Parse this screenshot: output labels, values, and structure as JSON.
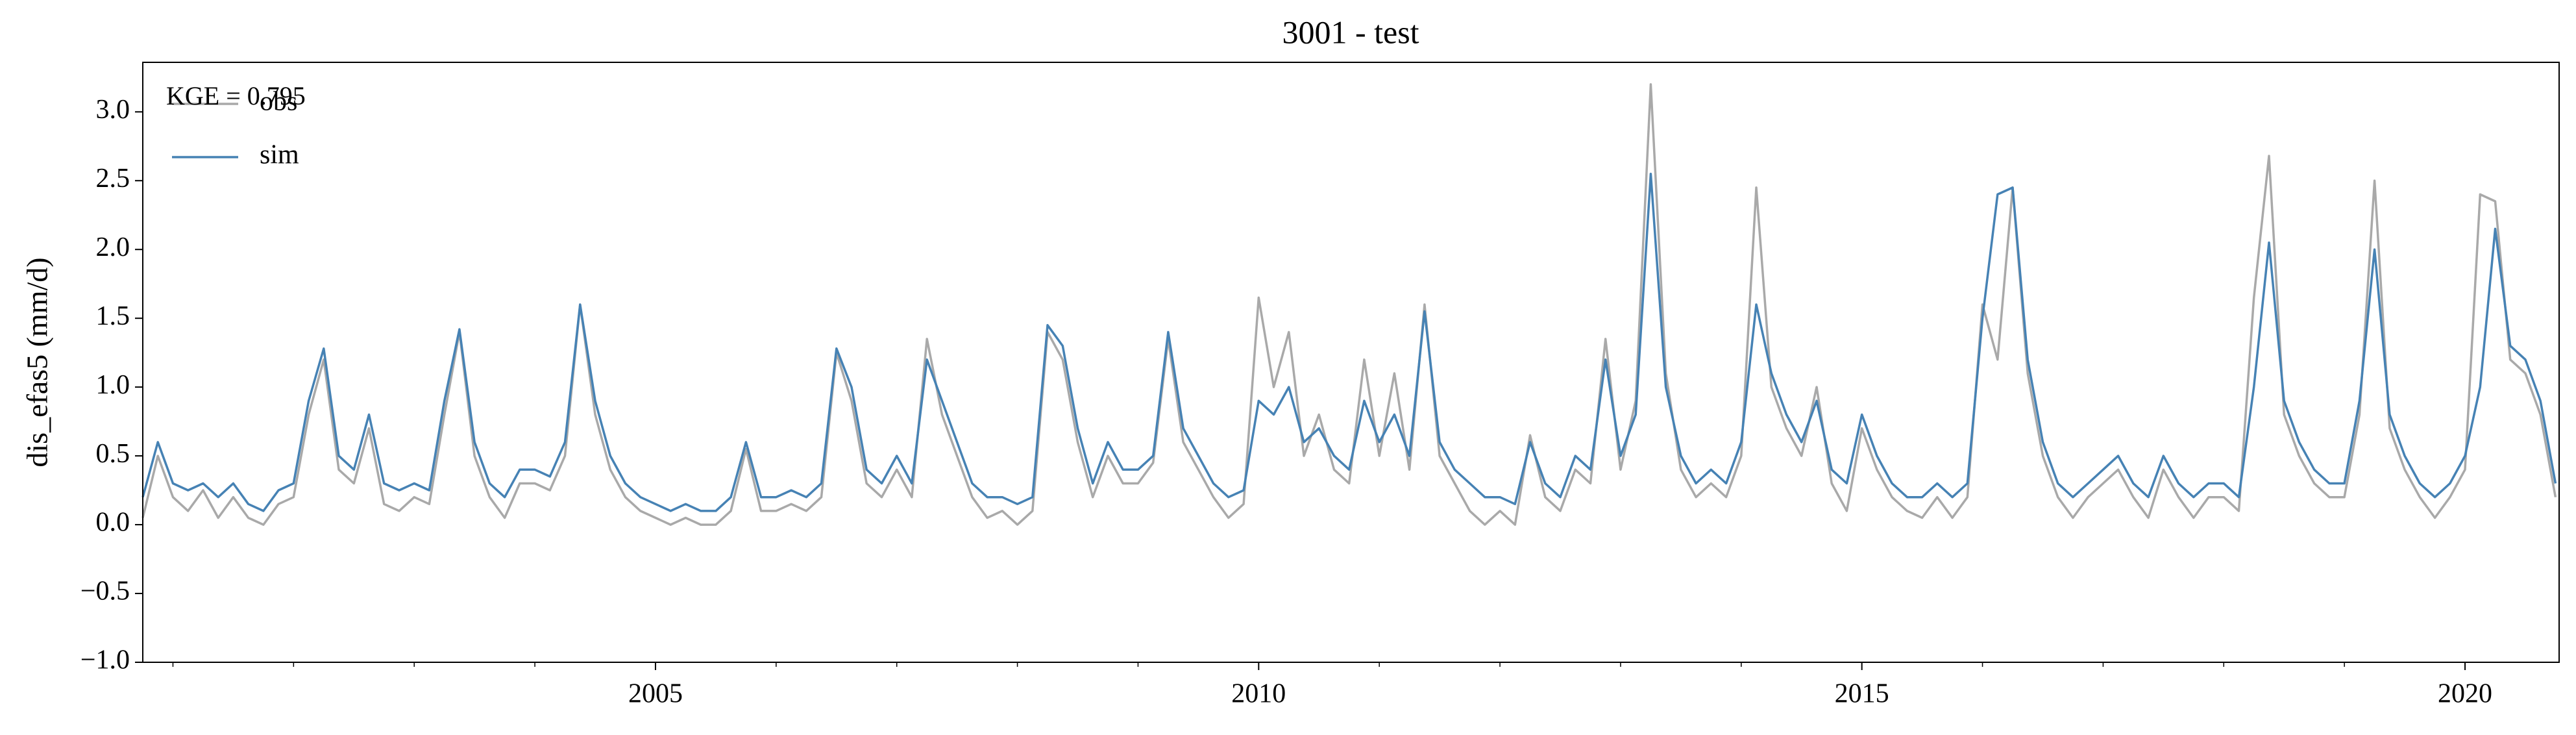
{
  "chart_data": {
    "type": "line",
    "title": "3001 - test",
    "ylabel": "dis_efas5 (mm/d)",
    "annotation": "KGE = 0.795",
    "legend": "upper left",
    "grid": false,
    "xlim": [
      2000.75,
      2020.78
    ],
    "xticks": [
      2005,
      2010,
      2015,
      2020
    ],
    "xminorticks": [
      2001,
      2002,
      2003,
      2004,
      2006,
      2007,
      2008,
      2009,
      2011,
      2012,
      2013,
      2014,
      2016,
      2017,
      2018,
      2019
    ],
    "ylim": [
      -1.0,
      3.36
    ],
    "yticks": [
      {
        "value": -1.0,
        "label": "−1.0"
      },
      {
        "value": -0.5,
        "label": "−0.5"
      },
      {
        "value": 0.0,
        "label": "0.0"
      },
      {
        "value": 0.5,
        "label": "0.5"
      },
      {
        "value": 1.0,
        "label": "1.0"
      },
      {
        "value": 1.5,
        "label": "1.5"
      },
      {
        "value": 2.0,
        "label": "2.0"
      },
      {
        "value": 2.5,
        "label": "2.5"
      },
      {
        "value": 3.0,
        "label": "3.0"
      }
    ],
    "x": [
      2000.75,
      2000.875,
      2001,
      2001.125,
      2001.25,
      2001.375,
      2001.5,
      2001.625,
      2001.75,
      2001.875,
      2002,
      2002.125,
      2002.25,
      2002.375,
      2002.5,
      2002.625,
      2002.75,
      2002.875,
      2003,
      2003.125,
      2003.25,
      2003.375,
      2003.5,
      2003.625,
      2003.75,
      2003.875,
      2004,
      2004.125,
      2004.25,
      2004.375,
      2004.5,
      2004.625,
      2004.75,
      2004.875,
      2005,
      2005.125,
      2005.25,
      2005.375,
      2005.5,
      2005.625,
      2005.75,
      2005.875,
      2006,
      2006.125,
      2006.25,
      2006.375,
      2006.5,
      2006.625,
      2006.75,
      2006.875,
      2007,
      2007.125,
      2007.25,
      2007.375,
      2007.5,
      2007.625,
      2007.75,
      2007.875,
      2008,
      2008.125,
      2008.25,
      2008.375,
      2008.5,
      2008.625,
      2008.75,
      2008.875,
      2009,
      2009.125,
      2009.25,
      2009.375,
      2009.5,
      2009.625,
      2009.75,
      2009.875,
      2010,
      2010.125,
      2010.25,
      2010.375,
      2010.5,
      2010.625,
      2010.75,
      2010.875,
      2011,
      2011.125,
      2011.25,
      2011.375,
      2011.5,
      2011.625,
      2011.75,
      2011.875,
      2012,
      2012.125,
      2012.25,
      2012.375,
      2012.5,
      2012.625,
      2012.75,
      2012.875,
      2013,
      2013.125,
      2013.25,
      2013.375,
      2013.5,
      2013.625,
      2013.75,
      2013.875,
      2014,
      2014.125,
      2014.25,
      2014.375,
      2014.5,
      2014.625,
      2014.75,
      2014.875,
      2015,
      2015.125,
      2015.25,
      2015.375,
      2015.5,
      2015.625,
      2015.75,
      2015.875,
      2016,
      2016.125,
      2016.25,
      2016.375,
      2016.5,
      2016.625,
      2016.75,
      2016.875,
      2017,
      2017.125,
      2017.25,
      2017.375,
      2017.5,
      2017.625,
      2017.75,
      2017.875,
      2018,
      2018.125,
      2018.25,
      2018.375,
      2018.5,
      2018.625,
      2018.75,
      2018.875,
      2019,
      2019.125,
      2019.25,
      2019.375,
      2019.5,
      2019.625,
      2019.75,
      2019.875,
      2020,
      2020.125,
      2020.25,
      2020.375,
      2020.5,
      2020.625,
      2020.75
    ],
    "series": [
      {
        "name": "obs",
        "color": "#a9a9a9",
        "values": [
          0.05,
          0.5,
          0.2,
          0.1,
          0.25,
          0.05,
          0.2,
          0.05,
          0.0,
          0.15,
          0.2,
          0.8,
          1.2,
          0.4,
          0.3,
          0.7,
          0.15,
          0.1,
          0.2,
          0.15,
          0.8,
          1.4,
          0.5,
          0.2,
          0.05,
          0.3,
          0.3,
          0.25,
          0.5,
          1.6,
          0.8,
          0.4,
          0.2,
          0.1,
          0.05,
          0.0,
          0.05,
          0.0,
          0.0,
          0.1,
          0.55,
          0.1,
          0.1,
          0.15,
          0.1,
          0.2,
          1.25,
          0.9,
          0.3,
          0.2,
          0.4,
          0.2,
          1.35,
          0.8,
          0.5,
          0.2,
          0.05,
          0.1,
          0.0,
          0.1,
          1.4,
          1.2,
          0.6,
          0.2,
          0.5,
          0.3,
          0.3,
          0.45,
          1.35,
          0.6,
          0.4,
          0.2,
          0.05,
          0.15,
          1.65,
          1.0,
          1.4,
          0.5,
          0.8,
          0.4,
          0.3,
          1.2,
          0.5,
          1.1,
          0.4,
          1.6,
          0.5,
          0.3,
          0.1,
          0.0,
          0.1,
          0.0,
          0.65,
          0.2,
          0.1,
          0.4,
          0.3,
          1.35,
          0.4,
          0.9,
          3.2,
          1.1,
          0.4,
          0.2,
          0.3,
          0.2,
          0.5,
          2.45,
          1.0,
          0.7,
          0.5,
          1.0,
          0.3,
          0.1,
          0.7,
          0.4,
          0.2,
          0.1,
          0.05,
          0.2,
          0.05,
          0.2,
          1.6,
          1.2,
          2.45,
          1.1,
          0.5,
          0.2,
          0.05,
          0.2,
          0.3,
          0.4,
          0.2,
          0.05,
          0.4,
          0.2,
          0.05,
          0.2,
          0.2,
          0.1,
          1.65,
          2.68,
          0.8,
          0.5,
          0.3,
          0.2,
          0.2,
          0.8,
          2.5,
          0.7,
          0.4,
          0.2,
          0.05,
          0.2,
          0.4,
          2.4,
          2.35,
          1.2,
          1.1,
          0.8,
          0.2
        ]
      },
      {
        "name": "sim",
        "color": "#4682b4",
        "values": [
          0.2,
          0.6,
          0.3,
          0.25,
          0.3,
          0.2,
          0.3,
          0.15,
          0.1,
          0.25,
          0.3,
          0.9,
          1.28,
          0.5,
          0.4,
          0.8,
          0.3,
          0.25,
          0.3,
          0.25,
          0.9,
          1.42,
          0.6,
          0.3,
          0.2,
          0.4,
          0.4,
          0.35,
          0.6,
          1.6,
          0.9,
          0.5,
          0.3,
          0.2,
          0.15,
          0.1,
          0.15,
          0.1,
          0.1,
          0.2,
          0.6,
          0.2,
          0.2,
          0.25,
          0.2,
          0.3,
          1.28,
          1.0,
          0.4,
          0.3,
          0.5,
          0.3,
          1.2,
          0.9,
          0.6,
          0.3,
          0.2,
          0.2,
          0.15,
          0.2,
          1.45,
          1.3,
          0.7,
          0.3,
          0.6,
          0.4,
          0.4,
          0.5,
          1.4,
          0.7,
          0.5,
          0.3,
          0.2,
          0.25,
          0.9,
          0.8,
          1.0,
          0.6,
          0.7,
          0.5,
          0.4,
          0.9,
          0.6,
          0.8,
          0.5,
          1.55,
          0.6,
          0.4,
          0.3,
          0.2,
          0.2,
          0.15,
          0.6,
          0.3,
          0.2,
          0.5,
          0.4,
          1.2,
          0.5,
          0.8,
          2.55,
          1.0,
          0.5,
          0.3,
          0.4,
          0.3,
          0.6,
          1.6,
          1.1,
          0.8,
          0.6,
          0.9,
          0.4,
          0.3,
          0.8,
          0.5,
          0.3,
          0.2,
          0.2,
          0.3,
          0.2,
          0.3,
          1.5,
          2.4,
          2.45,
          1.2,
          0.6,
          0.3,
          0.2,
          0.3,
          0.4,
          0.5,
          0.3,
          0.2,
          0.5,
          0.3,
          0.2,
          0.3,
          0.3,
          0.2,
          1.0,
          2.05,
          0.9,
          0.6,
          0.4,
          0.3,
          0.3,
          0.9,
          2.0,
          0.8,
          0.5,
          0.3,
          0.2,
          0.3,
          0.5,
          1.0,
          2.15,
          1.3,
          1.2,
          0.9,
          0.3
        ]
      }
    ]
  }
}
